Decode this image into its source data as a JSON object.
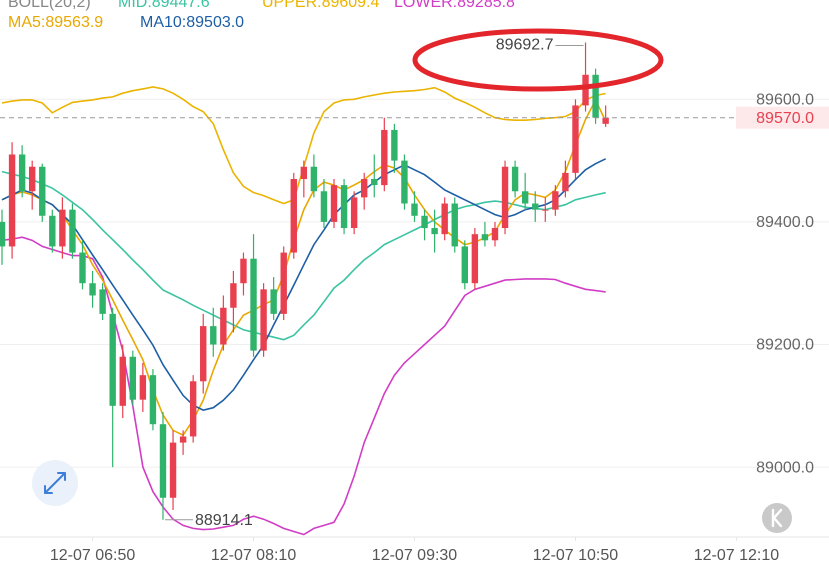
{
  "chart_data": {
    "type": "candlestick",
    "indicator_label": "BOLL(20,2)",
    "up_color": "#e8404f",
    "down_color": "#2fb36b",
    "xlim": [
      "12-07 06:04",
      "12-07 12:56"
    ],
    "xticks": [
      "12-07 06:50",
      "12-07 08:10",
      "12-07 09:30",
      "12-07 10:50",
      "12-07 12:10"
    ],
    "ylim": [
      88886,
      89762
    ],
    "yticks": [
      {
        "value": 89000,
        "label": "89000.0"
      },
      {
        "value": 89200,
        "label": "89200.0"
      },
      {
        "value": 89400,
        "label": "89400.0"
      },
      {
        "value": 89600,
        "label": "89600.0"
      }
    ],
    "grid": true,
    "last_price": {
      "value": 89570,
      "label": "89570.0",
      "color": "#e8404f"
    },
    "candles": {
      "x": [
        "12-07 06:05",
        "12-07 06:10",
        "12-07 06:15",
        "12-07 06:20",
        "12-07 06:25",
        "12-07 06:30",
        "12-07 06:35",
        "12-07 06:40",
        "12-07 06:45",
        "12-07 06:50",
        "12-07 06:55",
        "12-07 07:00",
        "12-07 07:05",
        "12-07 07:10",
        "12-07 07:15",
        "12-07 07:20",
        "12-07 07:25",
        "12-07 07:30",
        "12-07 07:35",
        "12-07 07:40",
        "12-07 07:45",
        "12-07 07:50",
        "12-07 07:55",
        "12-07 08:00",
        "12-07 08:05",
        "12-07 08:10",
        "12-07 08:15",
        "12-07 08:20",
        "12-07 08:25",
        "12-07 08:30",
        "12-07 08:35",
        "12-07 08:40",
        "12-07 08:45",
        "12-07 08:50",
        "12-07 08:55",
        "12-07 09:00",
        "12-07 09:05",
        "12-07 09:10",
        "12-07 09:15",
        "12-07 09:20",
        "12-07 09:25",
        "12-07 09:30",
        "12-07 09:35",
        "12-07 09:40",
        "12-07 09:45",
        "12-07 09:50",
        "12-07 09:55",
        "12-07 10:00",
        "12-07 10:05",
        "12-07 10:10",
        "12-07 10:15",
        "12-07 10:20",
        "12-07 10:25",
        "12-07 10:30",
        "12-07 10:35",
        "12-07 10:40",
        "12-07 10:45",
        "12-07 10:50",
        "12-07 10:55",
        "12-07 11:00",
        "12-07 11:05"
      ],
      "open": [
        89400,
        89360,
        89510,
        89450,
        89490,
        89410,
        89360,
        89420,
        89350,
        89300,
        89290,
        89250,
        89100,
        89180,
        89110,
        89150,
        89070,
        88950,
        89040,
        89050,
        89140,
        89230,
        89200,
        89260,
        89300,
        89340,
        89190,
        89290,
        89250,
        89350,
        89470,
        89490,
        89450,
        89400,
        89460,
        89390,
        89440,
        89470,
        89460,
        89550,
        89500,
        89430,
        89410,
        89390,
        89380,
        89430,
        89360,
        89300,
        89380,
        89370,
        89390,
        89490,
        89450,
        89430,
        89420,
        89420,
        89450,
        89480,
        89590,
        89640,
        89560
      ],
      "high": [
        89420,
        89530,
        89525,
        89500,
        89495,
        89420,
        89440,
        89430,
        89370,
        89320,
        89300,
        89260,
        89200,
        89190,
        89170,
        89160,
        89090,
        89060,
        89060,
        89150,
        89250,
        89260,
        89280,
        89320,
        89350,
        89380,
        89300,
        89310,
        89360,
        89480,
        89500,
        89510,
        89470,
        89470,
        89470,
        89450,
        89480,
        89510,
        89570,
        89560,
        89510,
        89450,
        89420,
        89420,
        89440,
        89440,
        89370,
        89390,
        89400,
        89400,
        89500,
        89500,
        89480,
        89450,
        89440,
        89460,
        89500,
        89600,
        89692.7,
        89650,
        89590
      ],
      "low": [
        89330,
        89340,
        89440,
        89420,
        89400,
        89350,
        89340,
        89340,
        89290,
        89260,
        89240,
        89000,
        89080,
        89100,
        89090,
        89060,
        88914.1,
        88930,
        89020,
        89040,
        89120,
        89180,
        89190,
        89220,
        89280,
        89180,
        89180,
        89240,
        89240,
        89340,
        89440,
        89440,
        89390,
        89390,
        89380,
        89380,
        89420,
        89440,
        89450,
        89480,
        89420,
        89400,
        89370,
        89350,
        89370,
        89350,
        89290,
        89290,
        89360,
        89360,
        89380,
        89440,
        89420,
        89400,
        89400,
        89410,
        89440,
        89470,
        89580,
        89560,
        89555
      ],
      "close": [
        89360,
        89510,
        89450,
        89490,
        89410,
        89360,
        89420,
        89350,
        89300,
        89280,
        89250,
        89100,
        89180,
        89110,
        89150,
        89070,
        88950,
        89040,
        89050,
        89140,
        89230,
        89200,
        89260,
        89300,
        89340,
        89190,
        89290,
        89250,
        89350,
        89470,
        89490,
        89450,
        89400,
        89460,
        89390,
        89440,
        89470,
        89460,
        89550,
        89500,
        89430,
        89410,
        89390,
        89380,
        89430,
        89360,
        89300,
        89380,
        89370,
        89390,
        89490,
        89450,
        89430,
        89420,
        89420,
        89450,
        89480,
        89590,
        89640,
        89570,
        89570
      ]
    },
    "series": [
      {
        "name": "MID:89447.6",
        "color": "#3cc4a2",
        "values": [
          89482,
          89478,
          89474,
          89469,
          89462,
          89455,
          89444,
          89432,
          89420,
          89404,
          89387,
          89371,
          89355,
          89338,
          89322,
          89305,
          89289,
          89281,
          89273,
          89264,
          89256,
          89248,
          89240,
          89232,
          89224,
          89220,
          89216,
          89212,
          89208,
          89215,
          89232,
          89248,
          89270,
          89292,
          89305,
          89322,
          89338,
          89350,
          89363,
          89371,
          89379,
          89387,
          89395,
          89404,
          89412,
          89420,
          89425,
          89428,
          89432,
          89434,
          89432,
          89428,
          89424,
          89422,
          89420,
          89424,
          89428,
          89436,
          89440,
          89444,
          89447.6
        ]
      },
      {
        "name": "UPPER:89609.4",
        "color": "#eab400",
        "values": [
          89594,
          89597,
          89599,
          89599,
          89594,
          89578,
          89587,
          89595,
          89597,
          89599,
          89602,
          89604,
          89610,
          89614,
          89617,
          89620,
          89617,
          89610,
          89600,
          89588,
          89580,
          89560,
          89518,
          89480,
          89458,
          89448,
          89443,
          89436,
          89430,
          89436,
          89490,
          89545,
          89580,
          89594,
          89599,
          89600,
          89604,
          89607,
          89610,
          89612,
          89613,
          89614,
          89616,
          89619,
          89612,
          89602,
          89595,
          89587,
          89578,
          89570,
          89567,
          89566,
          89566,
          89567,
          89569,
          89570,
          89572,
          89580,
          89599,
          89606,
          89609.4
        ]
      },
      {
        "name": "LOWER:89285.8",
        "color": "#d23dc6",
        "values": [
          89370,
          89372,
          89375,
          89370,
          89360,
          89355,
          89350,
          89345,
          89345,
          89340,
          89310,
          89250,
          89190,
          89100,
          89000,
          88960,
          88935,
          88915,
          88905,
          88900,
          88898,
          88899,
          88902,
          88905,
          88915,
          88920,
          88915,
          88908,
          88900,
          88895,
          88890,
          88900,
          88905,
          88910,
          88940,
          88985,
          89040,
          89080,
          89120,
          89150,
          89170,
          89185,
          89200,
          89215,
          89230,
          89255,
          89280,
          89290,
          89295,
          89300,
          89305,
          89306,
          89307,
          89307,
          89307,
          89306,
          89300,
          89295,
          89290,
          89288,
          89285.8
        ]
      },
      {
        "name": "MA5:89563.9",
        "color": "#e9a800",
        "values": [
          89436,
          89444,
          89449,
          89444,
          89436,
          89428,
          89412,
          89387,
          89363,
          89330,
          89305,
          89273,
          89240,
          89208,
          89175,
          89126,
          89085,
          89060,
          89052,
          89077,
          89109,
          89158,
          89199,
          89224,
          89248,
          89256,
          89265,
          89273,
          89314,
          89371,
          89420,
          89452,
          89465,
          89460,
          89452,
          89460,
          89469,
          89482,
          89493,
          89488,
          89472,
          89444,
          89420,
          89400,
          89387,
          89374,
          89363,
          89367,
          89374,
          89384,
          89412,
          89436,
          89447,
          89444,
          89440,
          89452,
          89482,
          89526,
          89567,
          89599,
          89563.9
        ]
      },
      {
        "name": "MA10:89503.0",
        "color": "#1d5fa6",
        "values": [
          89436,
          89444,
          89452,
          89447,
          89436,
          89428,
          89412,
          89396,
          89371,
          89346,
          89322,
          89297,
          89273,
          89248,
          89224,
          89199,
          89167,
          89142,
          89117,
          89101,
          89093,
          89097,
          89109,
          89126,
          89150,
          89175,
          89199,
          89232,
          89264,
          89297,
          89330,
          89363,
          89387,
          89412,
          89428,
          89444,
          89452,
          89465,
          89477,
          89485,
          89493,
          89485,
          89477,
          89465,
          89452,
          89444,
          89436,
          89428,
          89420,
          89412,
          89407,
          89412,
          89420,
          89424,
          89428,
          89436,
          89452,
          89469,
          89485,
          89495,
          89503.0
        ]
      }
    ]
  }
}
